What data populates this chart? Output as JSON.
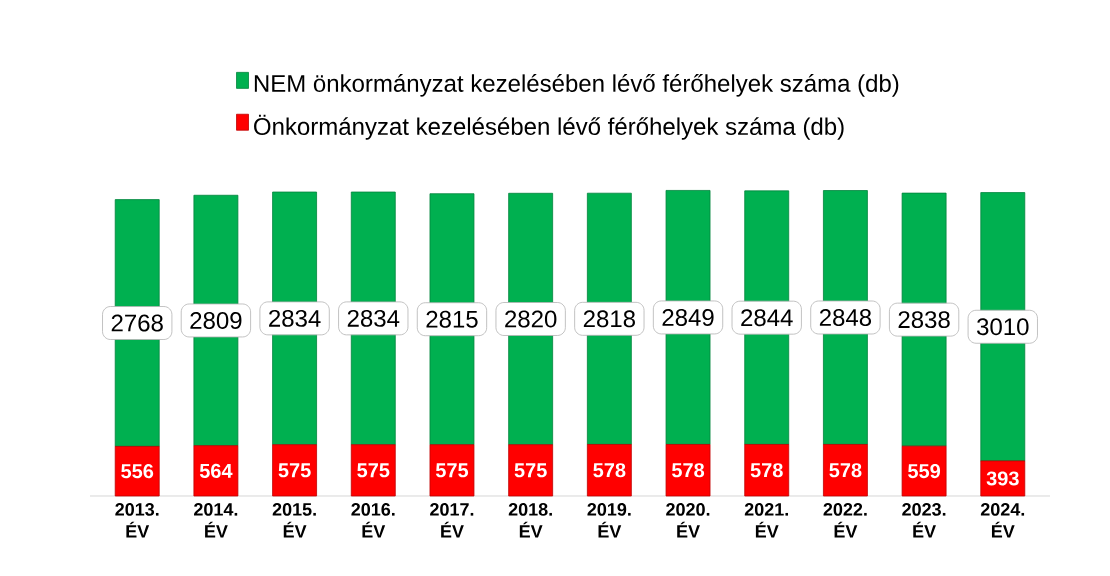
{
  "chart_data": {
    "type": "bar",
    "stacked": true,
    "data_labels": true,
    "legend": "top",
    "categories": [
      "2013. ÉV",
      "2014. ÉV",
      "2015. ÉV",
      "2016. ÉV",
      "2017. ÉV",
      "2018. ÉV",
      "2019. ÉV",
      "2020. ÉV",
      "2021. ÉV",
      "2022. ÉV",
      "2023. ÉV",
      "2024. ÉV"
    ],
    "series": [
      {
        "name": "Önkormányzat kezelésében lévő férőhelyek száma (db)",
        "color": "#ff0000",
        "values": [
          556,
          564,
          575,
          575,
          575,
          575,
          578,
          578,
          578,
          578,
          559,
          393
        ]
      },
      {
        "name": "NEM önkormányzat kezelésében lévő férőhelyek száma (db)",
        "color": "#00b050",
        "values": [
          2768,
          2809,
          2834,
          2834,
          2815,
          2820,
          2818,
          2849,
          2844,
          2848,
          2838,
          3010
        ]
      }
    ]
  }
}
